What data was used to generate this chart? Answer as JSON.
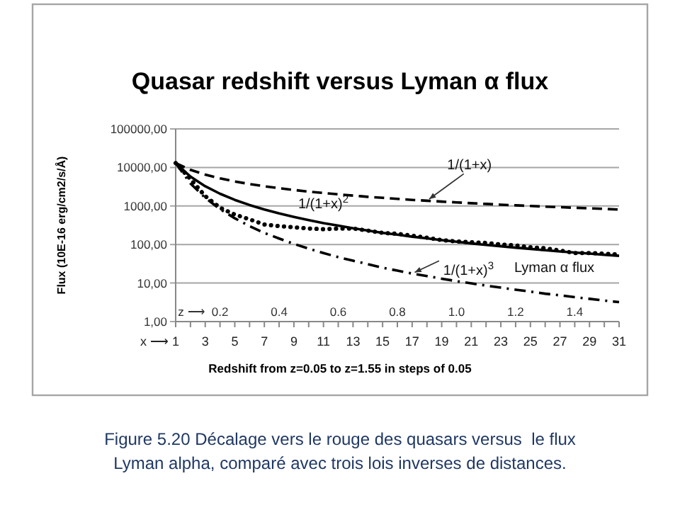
{
  "chart_data": {
    "type": "line",
    "title": "Quasar redshift versus Lyman α flux",
    "xlabel": "Redshift from z=0.05 to z=1.55 in steps of 0.05",
    "ylabel": "Flux (10E-16 erg/cm2/s/Å)",
    "x2label": "z ⟶",
    "x": [
      1,
      2,
      3,
      4,
      5,
      6,
      7,
      8,
      9,
      10,
      11,
      12,
      13,
      14,
      15,
      16,
      17,
      18,
      19,
      20,
      21,
      22,
      23,
      24,
      25,
      26,
      27,
      28,
      29,
      30,
      31
    ],
    "series": [
      {
        "name": "1/(1+x)",
        "color": "#000000",
        "line_style": "dashed",
        "values": [
          13000,
          8670,
          6500,
          5200,
          4330,
          3710,
          3250,
          2890,
          2600,
          2360,
          2170,
          2000,
          1860,
          1730,
          1630,
          1530,
          1440,
          1370,
          1300,
          1240,
          1180,
          1130,
          1080,
          1040,
          1000,
          960,
          930,
          900,
          870,
          840,
          810
        ]
      },
      {
        "name": "1/(1+x)$^{2}$",
        "color": "#000000",
        "line_style": "solid",
        "values": [
          13000,
          5780,
          3250,
          2080,
          1440,
          1060,
          810,
          640,
          520,
          430,
          360,
          310,
          265,
          230,
          200,
          180,
          160,
          144,
          130,
          118,
          107,
          98,
          90,
          83,
          77,
          71,
          66,
          62,
          58,
          54,
          51
        ]
      },
      {
        "name": "Lyman α flux",
        "color": "#000000",
        "line_style": "dotted",
        "values": [
          13000,
          5000,
          1800,
          900,
          600,
          450,
          330,
          300,
          280,
          260,
          250,
          260,
          260,
          230,
          200,
          190,
          170,
          150,
          130,
          120,
          115,
          110,
          100,
          95,
          85,
          80,
          70,
          60,
          60,
          58,
          55
        ]
      },
      {
        "name": "1/(1+x)$^{3}$",
        "color": "#000000",
        "line_style": "dashdot",
        "values": [
          13000,
          3850,
          1630,
          830,
          480,
          300,
          200,
          143,
          104,
          78,
          60,
          47,
          38,
          31,
          25,
          21,
          17.6,
          15.2,
          13,
          11.2,
          9.8,
          8.6,
          7.6,
          6.7,
          6,
          5.3,
          4.8,
          4.3,
          3.9,
          3.5,
          3.2
        ]
      }
    ],
    "log": "y",
    "grid": "y",
    "legend": false,
    "marker": "none",
    "ylim": [
      1,
      100000
    ],
    "yticks": [
      {
        "value": 1,
        "label": "1,00"
      },
      {
        "value": 10,
        "label": "10,00"
      },
      {
        "value": 100,
        "label": "100,00"
      },
      {
        "value": 1000,
        "label": "1000,00"
      },
      {
        "value": 10000,
        "label": "10000,00"
      },
      {
        "value": 100000,
        "label": "100000,00"
      }
    ],
    "xlim": [
      1,
      31
    ],
    "xticks": [
      1,
      {
        "value": 2,
        "label": null
      },
      3,
      {
        "value": 4,
        "label": null
      },
      5,
      {
        "value": 6,
        "label": null
      },
      7,
      {
        "value": 8,
        "label": null
      },
      9,
      {
        "value": 10,
        "label": null
      },
      11,
      {
        "value": 12,
        "label": null
      },
      13,
      {
        "value": 14,
        "label": null
      },
      15,
      {
        "value": 16,
        "label": null
      },
      17,
      {
        "value": 18,
        "label": null
      },
      19,
      {
        "value": 20,
        "label": null
      },
      21,
      {
        "value": 22,
        "label": null
      },
      23,
      {
        "value": 24,
        "label": null
      },
      25,
      {
        "value": 26,
        "label": null
      },
      27,
      {
        "value": 28,
        "label": null
      },
      29,
      {
        "value": 30,
        "label": null
      },
      31
    ],
    "x2lim": [
      0.05,
      1.55
    ],
    "x2ticks": [
      {
        "value": 0.2,
        "label": "0.2"
      },
      {
        "value": 0.4,
        "label": "0.4"
      },
      {
        "value": 0.6,
        "label": "0.6"
      },
      {
        "value": 0.8,
        "label": "0.8"
      },
      {
        "value": 1.0,
        "label": "1.0"
      },
      {
        "value": 1.2,
        "label": "1.2"
      },
      {
        "value": 1.4,
        "label": "1.4"
      }
    ],
    "annotations": [
      "x ⟶",
      "Figure 5.20 Décalage vers le rouge des quasars versus  le flux Lyman alpha, comparé avec trois lois inverses de distances."
    ]
  }
}
